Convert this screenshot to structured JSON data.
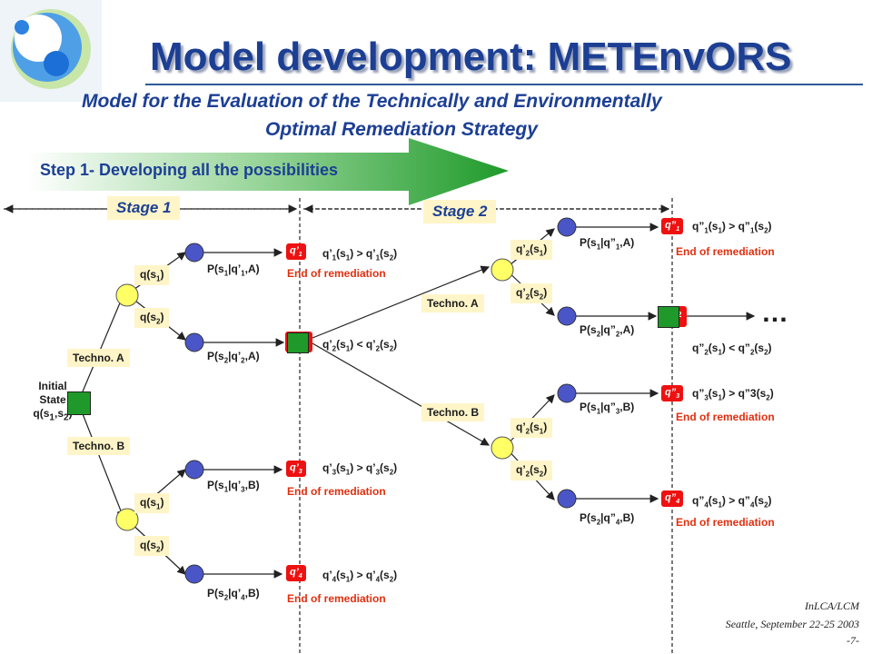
{
  "title": "Model development: METEnvORS",
  "subtitle_line1": "Model for the Evaluation of the Technically and Environmentally",
  "subtitle_line2": "Optimal Remediation Strategy",
  "step_label": "Step 1- Developing all the possibilities",
  "stages": [
    "Stage 1",
    "Stage 2"
  ],
  "initial_state": {
    "line1": "Initial",
    "line2": "State",
    "line3": "q(s1,s2)"
  },
  "techno_a": "Techno. A",
  "techno_b": "Techno. B",
  "end_label": "End of remediation",
  "ellipsis": "…",
  "footer": {
    "line1": "InLCA/LCM",
    "line2": "Seattle, September 22-25 2003",
    "page": "-7-"
  },
  "colors": {
    "title": "#1c3f94",
    "label_bg": "#fff5c8",
    "red": "#ee1111",
    "green": "#1f9a2a",
    "purple": "#4a56c8",
    "yellow": "#ffff66"
  }
}
